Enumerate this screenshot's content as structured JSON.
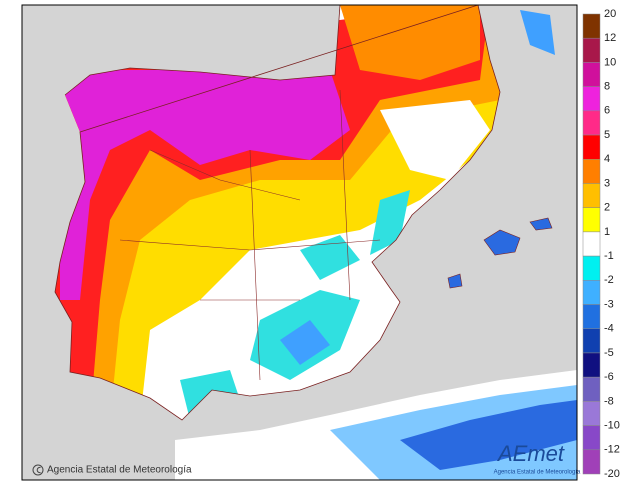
{
  "legend": {
    "labels": [
      20,
      12,
      10,
      8,
      6,
      5,
      4,
      3,
      2,
      1,
      -1,
      -2,
      -3,
      -4,
      -5,
      -6,
      -8,
      -10,
      -12,
      -20
    ],
    "colors": [
      "#7f3300",
      "#a8184a",
      "#d0109c",
      "#ee22dd",
      "#ff2a88",
      "#ff0000",
      "#ff7f00",
      "#ffbf00",
      "#ffff00",
      "#ffffff",
      "#00f0f0",
      "#3fb0ff",
      "#2070e0",
      "#1040b0",
      "#101080",
      "#6f60c0",
      "#9a78d8",
      "#8848c8",
      "#a040b8"
    ]
  },
  "credit": "Agencia Estatal de Meteorología",
  "logo": {
    "name": "AEmet",
    "subtitle": "Agencia Estatal de Meteorología"
  }
}
